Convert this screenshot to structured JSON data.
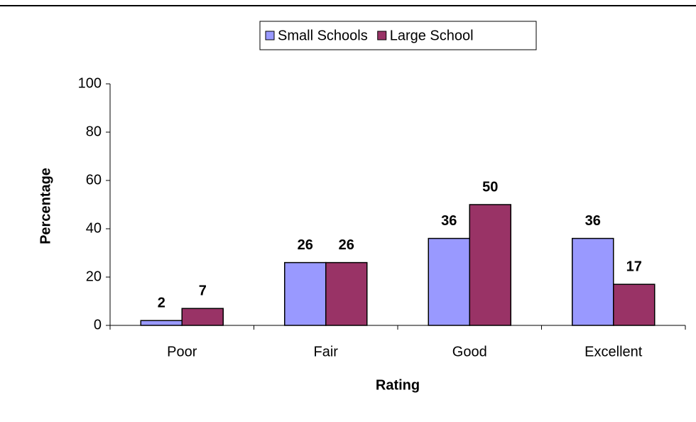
{
  "chart_data": {
    "type": "bar",
    "categories": [
      "Poor",
      "Fair",
      "Good",
      "Excellent"
    ],
    "series": [
      {
        "name": "Small Schools",
        "color": "#9999ff",
        "values": [
          2,
          26,
          36,
          36
        ]
      },
      {
        "name": "Large School",
        "color": "#993366",
        "values": [
          7,
          26,
          50,
          17
        ]
      }
    ],
    "x_label": "Rating",
    "y_label": "Percentage",
    "ylim": [
      0,
      100
    ],
    "yticks": [
      0,
      20,
      40,
      60,
      80,
      100
    ],
    "grid": false,
    "legend": "top"
  }
}
